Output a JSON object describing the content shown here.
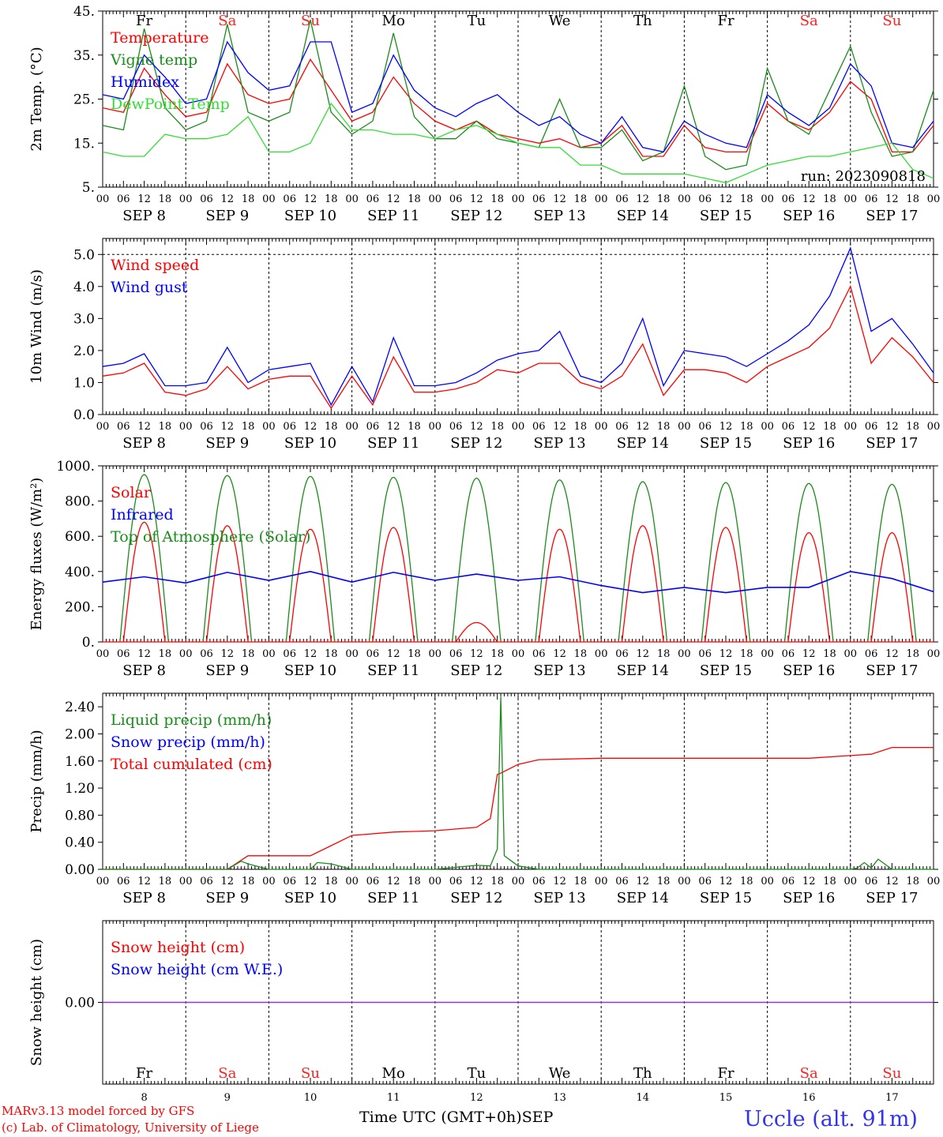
{
  "days": [
    "Fr",
    "Sa",
    "Su",
    "Mo",
    "Tu",
    "We",
    "Th",
    "Fr",
    "Sa",
    "Su"
  ],
  "day_nums": [
    "8",
    "9",
    "10",
    "11",
    "12",
    "13",
    "14",
    "15",
    "16",
    "17"
  ],
  "date_labels": [
    "SEP  8",
    "SEP  9",
    "SEP 10",
    "SEP 11",
    "SEP 12",
    "SEP 13",
    "SEP 14",
    "SEP 15",
    "SEP 16",
    "SEP 17"
  ],
  "hour_ticks": [
    "00",
    "06",
    "12",
    "18"
  ],
  "end_hour": "00",
  "colors": {
    "weekday": "#000000",
    "weekend": "#ff2020",
    "red": "#ff0000",
    "dkgreen": "#1a8c1a",
    "ltgreen": "#33dd33",
    "blue": "#0000ff",
    "purple": "#9933cc"
  },
  "footer": {
    "model": "MARv3.13 model forced by GFS",
    "lab": "(c) Lab. of Climatology, University of Liege",
    "axis_title": "Time UTC (GMT+0h)",
    "month": "SEP",
    "station": "Uccle (alt. 91m)"
  },
  "chart_data": [
    {
      "type": "line",
      "ylabel": "2m Temp. (°C)",
      "ylim": [
        5,
        45
      ],
      "yticks": [
        "5.",
        "15.",
        "25.",
        "35.",
        "45."
      ],
      "legend": [
        "Temperature",
        "Vigne temp",
        "Humidex",
        "DewPoint Temp"
      ],
      "annotation": "run: 2023090818",
      "series": [
        {
          "name": "Temperature",
          "color": "red",
          "x": [
            0,
            6,
            12,
            18,
            24,
            30,
            36,
            42,
            48,
            54,
            60,
            66,
            72,
            78,
            84,
            90,
            96,
            102,
            108,
            114,
            120,
            126,
            132,
            138,
            144,
            150,
            156,
            162,
            168,
            174,
            180,
            186,
            192,
            198,
            204,
            210,
            216,
            222,
            228,
            234,
            240
          ],
          "values": [
            23,
            22,
            32,
            26,
            21,
            22,
            33,
            26,
            24,
            25,
            34,
            27,
            20,
            22,
            30,
            24,
            20,
            18,
            20,
            17,
            16,
            15,
            16,
            14,
            15,
            19,
            12,
            12,
            19,
            14,
            13,
            13,
            24,
            20,
            18,
            22,
            29,
            25,
            13,
            13,
            19
          ]
        },
        {
          "name": "Vigne temp",
          "color": "dkgreen",
          "x": [
            0,
            6,
            12,
            18,
            24,
            30,
            36,
            42,
            48,
            54,
            60,
            66,
            72,
            78,
            84,
            90,
            96,
            102,
            108,
            114,
            120,
            126,
            132,
            138,
            144,
            150,
            156,
            162,
            168,
            174,
            180,
            186,
            192,
            198,
            204,
            210,
            216,
            222,
            228,
            234,
            240
          ],
          "values": [
            19,
            18,
            41,
            23,
            18,
            20,
            42,
            22,
            20,
            22,
            43,
            22,
            17,
            20,
            40,
            21,
            16,
            16,
            20,
            16,
            15,
            14,
            25,
            14,
            14,
            18,
            11,
            13,
            28,
            12,
            9,
            10,
            32,
            20,
            17,
            27,
            37,
            22,
            12,
            13,
            27
          ]
        },
        {
          "name": "Humidex",
          "color": "blue",
          "x": [
            0,
            6,
            12,
            18,
            24,
            30,
            36,
            42,
            48,
            54,
            60,
            66,
            72,
            78,
            84,
            90,
            96,
            102,
            108,
            114,
            120,
            126,
            132,
            138,
            144,
            150,
            156,
            162,
            168,
            174,
            180,
            186,
            192,
            198,
            204,
            210,
            216,
            222,
            228,
            234,
            240
          ],
          "values": [
            26,
            25,
            35,
            30,
            24,
            25,
            38,
            31,
            27,
            28,
            38,
            38,
            22,
            24,
            35,
            27,
            23,
            21,
            24,
            26,
            22,
            19,
            21,
            17,
            15,
            21,
            14,
            13,
            20,
            17,
            15,
            14,
            26,
            22,
            19,
            23,
            33,
            28,
            15,
            14,
            20
          ]
        },
        {
          "name": "DewPoint Temp",
          "color": "ltgreen",
          "x": [
            0,
            6,
            12,
            18,
            24,
            30,
            36,
            42,
            48,
            54,
            60,
            66,
            72,
            78,
            84,
            90,
            96,
            102,
            108,
            114,
            120,
            126,
            132,
            138,
            144,
            150,
            156,
            162,
            168,
            174,
            180,
            186,
            192,
            198,
            204,
            210,
            216,
            222,
            228,
            234,
            240
          ],
          "values": [
            13,
            12,
            12,
            17,
            16,
            16,
            17,
            21,
            13,
            13,
            15,
            24,
            18,
            18,
            17,
            17,
            16,
            18,
            19,
            17,
            15,
            14,
            14,
            10,
            10,
            8,
            8,
            8,
            8,
            7,
            6,
            8,
            10,
            11,
            12,
            12,
            13,
            14,
            15,
            9,
            7
          ]
        }
      ]
    },
    {
      "type": "line",
      "ylabel": "10m Wind (m/s)",
      "ylim": [
        0,
        5.5
      ],
      "yticks": [
        "0.0",
        "1.0",
        "2.0",
        "3.0",
        "4.0",
        "5.0"
      ],
      "refline": 5.0,
      "legend": [
        "Wind speed",
        "Wind gust"
      ],
      "series": [
        {
          "name": "Wind speed",
          "color": "red",
          "x": [
            0,
            6,
            12,
            18,
            24,
            30,
            36,
            42,
            48,
            54,
            60,
            66,
            72,
            78,
            84,
            90,
            96,
            102,
            108,
            114,
            120,
            126,
            132,
            138,
            144,
            150,
            156,
            162,
            168,
            174,
            180,
            186,
            192,
            198,
            204,
            210,
            216,
            222,
            228,
            234,
            240
          ],
          "values": [
            1.2,
            1.3,
            1.6,
            0.7,
            0.6,
            0.8,
            1.5,
            0.8,
            1.1,
            1.2,
            1.2,
            0.2,
            1.2,
            0.3,
            1.8,
            0.7,
            0.7,
            0.8,
            1.0,
            1.4,
            1.3,
            1.6,
            1.6,
            1.0,
            0.8,
            1.2,
            2.2,
            0.6,
            1.4,
            1.4,
            1.3,
            1.0,
            1.5,
            1.8,
            2.1,
            2.7,
            4.0,
            1.6,
            2.4,
            1.8,
            1.0
          ]
        },
        {
          "name": "Wind gust",
          "color": "blue",
          "x": [
            0,
            6,
            12,
            18,
            24,
            30,
            36,
            42,
            48,
            54,
            60,
            66,
            72,
            78,
            84,
            90,
            96,
            102,
            108,
            114,
            120,
            126,
            132,
            138,
            144,
            150,
            156,
            162,
            168,
            174,
            180,
            186,
            192,
            198,
            204,
            210,
            216,
            222,
            228,
            234,
            240
          ],
          "values": [
            1.5,
            1.6,
            1.9,
            0.9,
            0.9,
            1.0,
            2.1,
            1.0,
            1.4,
            1.5,
            1.6,
            0.3,
            1.5,
            0.4,
            2.4,
            0.9,
            0.9,
            1.0,
            1.3,
            1.7,
            1.9,
            2.0,
            2.6,
            1.2,
            1.0,
            1.6,
            3.0,
            0.9,
            2.0,
            1.9,
            1.8,
            1.5,
            1.9,
            2.3,
            2.8,
            3.7,
            5.2,
            2.6,
            3.0,
            2.2,
            1.3
          ]
        }
      ]
    },
    {
      "type": "line",
      "ylabel": "Energy fluxes (W/m²)",
      "ylim": [
        0,
        1000
      ],
      "yticks": [
        "0.",
        "200.",
        "400.",
        "600.",
        "800.",
        "1000."
      ],
      "legend": [
        "Solar",
        "Infrared",
        "Top of Atmosphere (Solar)"
      ],
      "toa_peaks": [
        950,
        945,
        940,
        935,
        930,
        920,
        910,
        905,
        900,
        895
      ],
      "solar_peaks": [
        680,
        660,
        640,
        650,
        110,
        640,
        660,
        650,
        620,
        620
      ],
      "series": [
        {
          "name": "Infrared",
          "color": "blue",
          "x": [
            0,
            12,
            24,
            36,
            48,
            60,
            72,
            84,
            96,
            108,
            120,
            132,
            144,
            156,
            168,
            180,
            192,
            204,
            216,
            228,
            240
          ],
          "values": [
            340,
            370,
            335,
            395,
            350,
            400,
            340,
            395,
            350,
            385,
            350,
            370,
            320,
            280,
            310,
            280,
            310,
            310,
            400,
            360,
            285
          ]
        }
      ]
    },
    {
      "type": "line",
      "ylabel": "Precip (mm/h)",
      "ylim": [
        0,
        2.6
      ],
      "yticks": [
        "0.00",
        "0.40",
        "0.80",
        "1.20",
        "1.60",
        "2.00",
        "2.40"
      ],
      "legend": [
        "Liquid precip (mm/h)",
        "Snow precip (mm/h)",
        "Total cumulated (cm)"
      ],
      "series": [
        {
          "name": "Total cumulated (cm)",
          "color": "red",
          "x": [
            0,
            36,
            42,
            48,
            60,
            66,
            72,
            84,
            96,
            108,
            112,
            114,
            115,
            120,
            126,
            144,
            168,
            192,
            204,
            216,
            222,
            228,
            240
          ],
          "values": [
            0,
            0,
            0.2,
            0.2,
            0.2,
            0.35,
            0.5,
            0.55,
            0.57,
            0.62,
            0.75,
            1.4,
            1.42,
            1.55,
            1.62,
            1.64,
            1.64,
            1.64,
            1.64,
            1.68,
            1.7,
            1.8,
            1.8
          ]
        },
        {
          "name": "Liquid precip (mm/h)",
          "color": "dkgreen",
          "x": [
            0,
            36,
            40,
            42,
            48,
            60,
            62,
            66,
            72,
            96,
            108,
            112,
            114,
            115,
            116,
            120,
            126,
            216,
            218,
            220,
            222,
            224,
            228,
            240
          ],
          "values": [
            0,
            0,
            0.12,
            0.08,
            0,
            0,
            0.1,
            0.08,
            0,
            0,
            0.06,
            0.05,
            0.3,
            2.55,
            0.2,
            0.05,
            0,
            0,
            0.02,
            0.1,
            0.02,
            0.15,
            0,
            0
          ]
        }
      ]
    },
    {
      "type": "line",
      "ylabel": "Snow height (cm)",
      "ylim": [
        -1,
        1
      ],
      "yticks": [
        "0.00"
      ],
      "legend": [
        "Snow height (cm)",
        "Snow height (cm W.E.)"
      ],
      "series": [
        {
          "name": "Snow height (cm)",
          "color": "red",
          "x": [
            0,
            240
          ],
          "values": [
            0,
            0
          ]
        },
        {
          "name": "Snow height (cm W.E.)",
          "color": "blue",
          "x": [
            0,
            240
          ],
          "values": [
            0,
            0
          ]
        }
      ]
    }
  ]
}
